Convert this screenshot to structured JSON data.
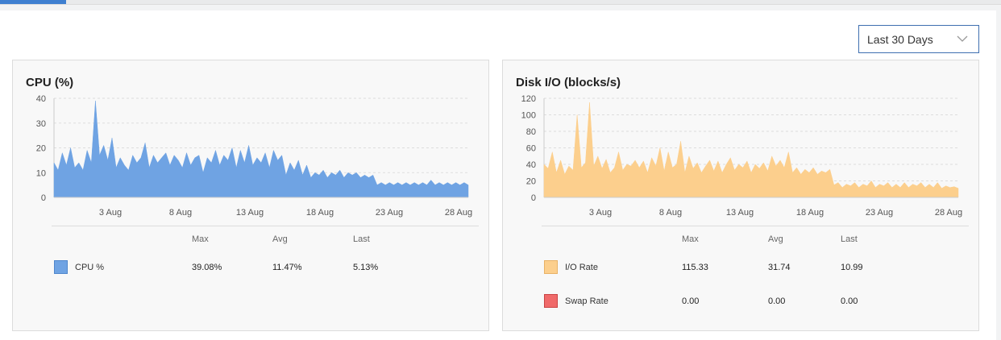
{
  "time_range": {
    "label": "Last 30 Days"
  },
  "panels": [
    {
      "title": "CPU (%)",
      "legend_headers": [
        "Max",
        "Avg",
        "Last"
      ],
      "legend": [
        {
          "name": "CPU %",
          "max": "39.08%",
          "avg": "11.47%",
          "last": "5.13%",
          "color": "#6fa3e3",
          "border": "#4f86cc"
        }
      ]
    },
    {
      "title": "Disk I/O (blocks/s)",
      "legend_headers": [
        "Max",
        "Avg",
        "Last"
      ],
      "legend": [
        {
          "name": "I/O Rate",
          "max": "115.33",
          "avg": "31.74",
          "last": "10.99",
          "color": "#fccf8d",
          "border": "#e8b266"
        },
        {
          "name": "Swap Rate",
          "max": "0.00",
          "avg": "0.00",
          "last": "0.00",
          "color": "#f06a6a",
          "border": "#c94444"
        }
      ]
    }
  ],
  "chart_data": [
    {
      "type": "area",
      "title": "CPU (%)",
      "xlabel": "",
      "ylabel": "",
      "ylim": [
        0,
        40
      ],
      "yticks": [
        0,
        10,
        20,
        30,
        40
      ],
      "x_ticks": [
        "3 Aug",
        "8 Aug",
        "13 Aug",
        "18 Aug",
        "23 Aug",
        "28 Aug"
      ],
      "x_range_days": [
        0,
        30
      ],
      "grid": true,
      "series": [
        {
          "name": "CPU %",
          "color": "#6fa3e3",
          "x": [
            0,
            0.3,
            0.6,
            0.9,
            1.2,
            1.5,
            1.8,
            2.1,
            2.4,
            2.7,
            3,
            3.3,
            3.6,
            3.9,
            4.2,
            4.5,
            4.8,
            5.1,
            5.4,
            5.7,
            6,
            6.3,
            6.6,
            6.9,
            7.2,
            7.5,
            7.8,
            8.1,
            8.4,
            8.7,
            9,
            9.3,
            9.6,
            9.9,
            10.2,
            10.5,
            10.8,
            11.1,
            11.4,
            11.7,
            12,
            12.3,
            12.6,
            12.9,
            13.2,
            13.5,
            13.8,
            14.1,
            14.4,
            14.7,
            15,
            15.3,
            15.6,
            15.9,
            16.2,
            16.5,
            16.8,
            17.1,
            17.4,
            17.7,
            18,
            18.3,
            18.6,
            18.9,
            19.2,
            19.5,
            19.8,
            20.1,
            20.4,
            20.7,
            21,
            21.3,
            21.6,
            21.9,
            22.2,
            22.5,
            22.8,
            23.1,
            23.4,
            23.7,
            24,
            24.3,
            24.6,
            24.9,
            25.2,
            25.5,
            25.8,
            26.1,
            26.4,
            26.7,
            27,
            27.3,
            27.6,
            27.9,
            28.2,
            28.5,
            28.8,
            29.1,
            29.4,
            29.7,
            30
          ],
          "values": [
            14,
            11,
            18,
            13,
            20,
            12,
            14,
            11,
            19,
            14,
            39,
            17,
            21,
            15,
            24,
            12,
            16,
            13,
            11,
            17,
            14,
            16,
            22,
            12,
            17,
            14,
            16,
            18,
            13,
            17,
            15,
            12,
            18,
            13,
            16,
            17,
            10,
            16,
            14,
            19,
            13,
            17,
            15,
            20,
            12,
            19,
            14,
            21,
            13,
            16,
            14,
            18,
            12,
            19,
            15,
            17,
            9,
            14,
            11,
            15,
            9,
            13,
            8,
            10,
            9,
            11,
            8,
            10,
            9,
            11,
            8,
            10,
            9,
            10,
            8,
            9,
            8,
            9,
            5,
            6,
            5,
            6,
            5,
            6,
            5,
            6,
            5,
            6,
            5,
            6,
            5,
            7,
            5,
            6,
            5,
            6,
            5,
            6,
            5,
            6,
            5
          ]
        }
      ]
    },
    {
      "type": "area",
      "title": "Disk I/O (blocks/s)",
      "xlabel": "",
      "ylabel": "",
      "ylim": [
        0,
        120
      ],
      "yticks": [
        0,
        20,
        40,
        60,
        80,
        100,
        120
      ],
      "x_ticks": [
        "3 Aug",
        "8 Aug",
        "13 Aug",
        "18 Aug",
        "23 Aug",
        "28 Aug"
      ],
      "x_range_days": [
        0,
        30
      ],
      "grid": true,
      "series": [
        {
          "name": "I/O Rate",
          "color": "#fccf8d",
          "x": [
            0,
            0.3,
            0.6,
            0.9,
            1.2,
            1.5,
            1.8,
            2.1,
            2.4,
            2.7,
            3,
            3.3,
            3.6,
            3.9,
            4.2,
            4.5,
            4.8,
            5.1,
            5.4,
            5.7,
            6,
            6.3,
            6.6,
            6.9,
            7.2,
            7.5,
            7.8,
            8.1,
            8.4,
            8.7,
            9,
            9.3,
            9.6,
            9.9,
            10.2,
            10.5,
            10.8,
            11.1,
            11.4,
            11.7,
            12,
            12.3,
            12.6,
            12.9,
            13.2,
            13.5,
            13.8,
            14.1,
            14.4,
            14.7,
            15,
            15.3,
            15.6,
            15.9,
            16.2,
            16.5,
            16.8,
            17.1,
            17.4,
            17.7,
            18,
            18.3,
            18.6,
            18.9,
            19.2,
            19.5,
            19.8,
            20.1,
            20.4,
            20.7,
            21,
            21.3,
            21.6,
            21.9,
            22.2,
            22.5,
            22.8,
            23.1,
            23.4,
            23.7,
            24,
            24.3,
            24.6,
            24.9,
            25.2,
            25.5,
            25.8,
            26.1,
            26.4,
            26.7,
            27,
            27.3,
            27.6,
            27.9,
            28.2,
            28.5,
            28.8,
            29.1,
            29.4,
            29.7,
            30
          ],
          "values": [
            40,
            35,
            55,
            30,
            45,
            28,
            38,
            33,
            100,
            36,
            42,
            115,
            38,
            50,
            35,
            46,
            30,
            36,
            55,
            33,
            40,
            38,
            45,
            36,
            44,
            30,
            48,
            38,
            60,
            32,
            55,
            36,
            40,
            68,
            30,
            50,
            35,
            42,
            30,
            38,
            45,
            32,
            44,
            30,
            40,
            48,
            33,
            40,
            36,
            44,
            30,
            40,
            35,
            42,
            32,
            50,
            38,
            45,
            36,
            55,
            30,
            36,
            28,
            34,
            30,
            36,
            28,
            32,
            30,
            34,
            15,
            18,
            12,
            16,
            14,
            18,
            12,
            16,
            14,
            20,
            12,
            16,
            14,
            18,
            12,
            16,
            12,
            18,
            12,
            16,
            14,
            18,
            12,
            16,
            12,
            18,
            11,
            14,
            12,
            13,
            11
          ]
        },
        {
          "name": "Swap Rate",
          "color": "#f06a6a",
          "x": [
            0,
            30
          ],
          "values": [
            0,
            0
          ]
        }
      ]
    }
  ]
}
